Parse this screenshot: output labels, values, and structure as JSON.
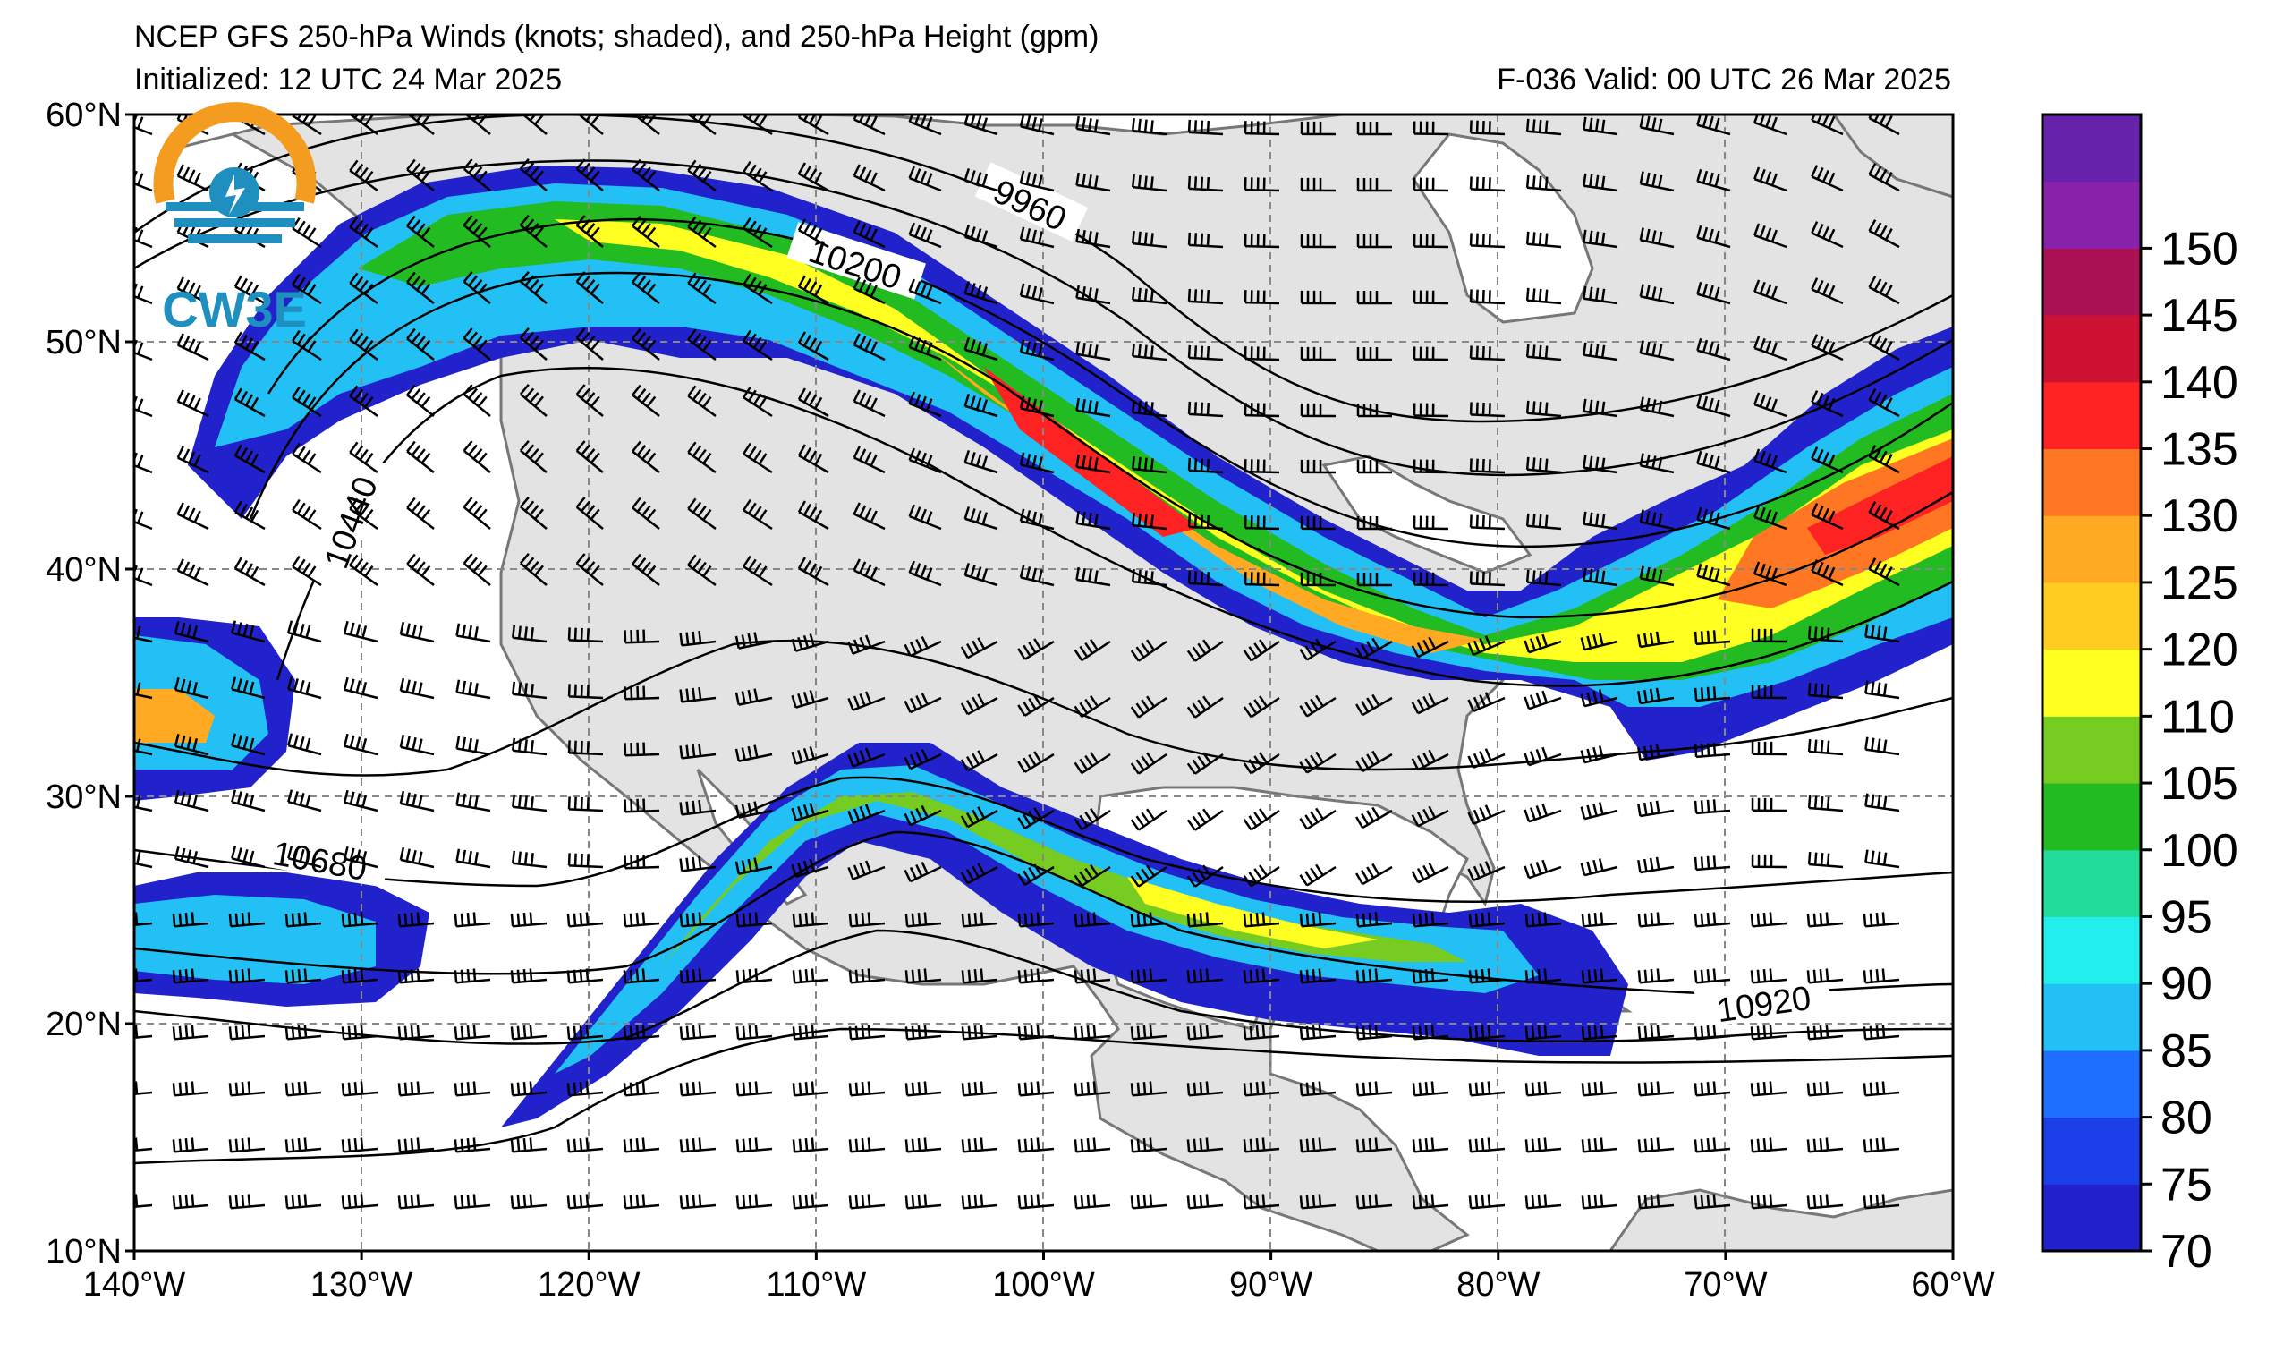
{
  "header": {
    "title": "NCEP GFS 250-hPa Winds (knots; shaded), and 250-hPa Height (gpm)",
    "initialized": "Initialized: 12 UTC 24 Mar 2025",
    "valid": "F-036  Valid: 00 UTC 26 Mar 2025"
  },
  "logo": {
    "text": "CW3E"
  },
  "map": {
    "lon_range": [
      -140,
      -60
    ],
    "lat_range": [
      10,
      60
    ],
    "lon_ticks": [
      {
        "value": -140,
        "label": "140°W"
      },
      {
        "value": -130,
        "label": "130°W"
      },
      {
        "value": -120,
        "label": "120°W"
      },
      {
        "value": -110,
        "label": "110°W"
      },
      {
        "value": -100,
        "label": "100°W"
      },
      {
        "value": -90,
        "label": "90°W"
      },
      {
        "value": -80,
        "label": "80°W"
      },
      {
        "value": -70,
        "label": "70°W"
      },
      {
        "value": -60,
        "label": "60°W"
      }
    ],
    "lat_ticks": [
      {
        "value": 60,
        "label": "60°N"
      },
      {
        "value": 50,
        "label": "50°N"
      },
      {
        "value": 40,
        "label": "40°N"
      },
      {
        "value": 30,
        "label": "30°N"
      },
      {
        "value": 20,
        "label": "20°N"
      },
      {
        "value": 10,
        "label": "10°N"
      }
    ],
    "gridlines": true,
    "height_contour_labels": [
      "9960",
      "10200",
      "10440",
      "10680",
      "10920"
    ]
  },
  "colorbar": {
    "unit": "knots",
    "ticks": [
      "70",
      "75",
      "80",
      "85",
      "90",
      "95",
      "100",
      "105",
      "110",
      "120",
      "125",
      "130",
      "135",
      "140",
      "145",
      "150"
    ],
    "colors": [
      "#2222cc",
      "#1a3fe8",
      "#1e6fff",
      "#22c0f5",
      "#22eeee",
      "#22dd99",
      "#22bb22",
      "#77cc22",
      "#ffff22",
      "#ffcc22",
      "#ffaa22",
      "#ff7722",
      "#ff2222",
      "#cc1133",
      "#aa1155",
      "#8822aa",
      "#6622aa"
    ]
  }
}
